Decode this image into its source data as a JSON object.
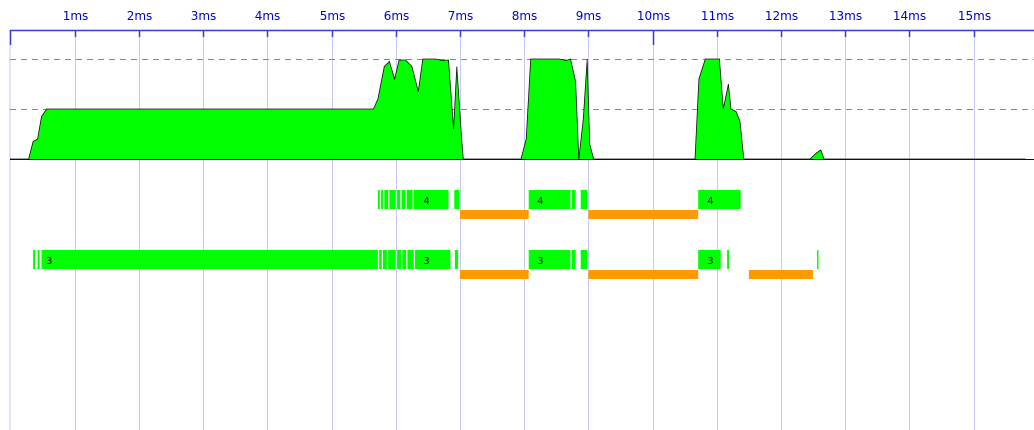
{
  "colors": {
    "axis": "#3a3ad6",
    "gridline": "#c8c8f0",
    "guide": "#888888",
    "activity_fill": "#00ff00",
    "activity_stroke": "#111111",
    "busy": "#00ff00",
    "waiting": "#ff9900",
    "label": "#0000cc"
  },
  "timeline": {
    "unit": "ms",
    "tick_values": [
      1,
      2,
      3,
      4,
      5,
      6,
      7,
      8,
      9,
      10,
      11,
      12,
      13,
      14,
      15
    ],
    "tick_labels": [
      "1ms",
      "2ms",
      "3ms",
      "4ms",
      "5ms",
      "6ms",
      "7ms",
      "8ms",
      "9ms",
      "10ms",
      "11ms",
      "12ms",
      "13ms",
      "14ms",
      "15ms"
    ],
    "range_ms": [
      -0.01,
      15.81
    ]
  },
  "chart_data": {
    "type": "area",
    "title": "",
    "xlabel": "",
    "ylabel": "",
    "xlim": [
      -0.01,
      15.81
    ],
    "ylim": [
      0,
      2
    ],
    "guides": [
      1,
      2
    ],
    "activity": [
      [
        -0.01,
        0
      ],
      [
        0.28,
        0
      ],
      [
        0.35,
        0.35
      ],
      [
        0.42,
        0.4
      ],
      [
        0.48,
        0.85
      ],
      [
        0.56,
        1.0
      ],
      [
        5.65,
        1.0
      ],
      [
        5.72,
        1.2
      ],
      [
        5.82,
        1.85
      ],
      [
        5.9,
        1.95
      ],
      [
        5.98,
        1.6
      ],
      [
        6.05,
        1.98
      ],
      [
        6.15,
        1.98
      ],
      [
        6.25,
        1.85
      ],
      [
        6.35,
        1.35
      ],
      [
        6.42,
        2.0
      ],
      [
        6.62,
        2.0
      ],
      [
        6.72,
        1.97
      ],
      [
        6.82,
        1.98
      ],
      [
        6.9,
        0.6
      ],
      [
        6.95,
        1.85
      ],
      [
        7.02,
        0.5
      ],
      [
        7.05,
        0
      ],
      [
        7.95,
        0
      ],
      [
        8.03,
        0.4
      ],
      [
        8.1,
        2.0
      ],
      [
        8.55,
        2.0
      ],
      [
        8.65,
        1.97
      ],
      [
        8.72,
        2.0
      ],
      [
        8.8,
        1.55
      ],
      [
        8.85,
        0
      ],
      [
        8.92,
        0.8
      ],
      [
        8.98,
        2.0
      ],
      [
        9.02,
        0.3
      ],
      [
        9.08,
        0
      ],
      [
        10.66,
        0
      ],
      [
        10.72,
        1.6
      ],
      [
        10.82,
        2.0
      ],
      [
        11.04,
        2.0
      ],
      [
        11.1,
        1.0
      ],
      [
        11.18,
        1.5
      ],
      [
        11.22,
        1.0
      ],
      [
        11.3,
        0.95
      ],
      [
        11.36,
        0.75
      ],
      [
        11.42,
        0
      ],
      [
        12.45,
        0
      ],
      [
        12.55,
        0.12
      ],
      [
        12.62,
        0.18
      ],
      [
        12.67,
        0
      ],
      [
        15.81,
        0
      ]
    ],
    "threads": [
      {
        "label_text": "4",
        "busy": [
          [
            5.72,
            5.75
          ],
          [
            5.77,
            5.8
          ],
          [
            5.82,
            5.88
          ],
          [
            5.9,
            6.0
          ],
          [
            6.02,
            6.07
          ],
          [
            6.09,
            6.15
          ],
          [
            6.17,
            6.26
          ],
          [
            6.28,
            6.82
          ],
          [
            6.91,
            6.99
          ],
          [
            8.07,
            8.72
          ],
          [
            8.74,
            8.8
          ],
          [
            8.88,
            8.98
          ],
          [
            10.71,
            11.37
          ]
        ],
        "waiting": [
          [
            7.0,
            8.07
          ],
          [
            9.0,
            10.71
          ]
        ],
        "label_at": [
          6.43,
          8.2,
          10.85
        ]
      },
      {
        "label_text": "3",
        "busy": [
          [
            0.35,
            0.38
          ],
          [
            0.42,
            0.45
          ],
          [
            0.48,
            5.72
          ],
          [
            5.74,
            5.78
          ],
          [
            5.8,
            5.86
          ],
          [
            5.88,
            6.0
          ],
          [
            6.02,
            6.08
          ],
          [
            6.1,
            6.16
          ],
          [
            6.18,
            6.28
          ],
          [
            6.3,
            6.85
          ],
          [
            6.92,
            6.97
          ],
          [
            8.07,
            8.72
          ],
          [
            8.74,
            8.8
          ],
          [
            8.88,
            8.98
          ],
          [
            10.71,
            11.06
          ],
          [
            11.16,
            11.19
          ],
          [
            12.56,
            12.58
          ]
        ],
        "waiting": [
          [
            7.0,
            8.07
          ],
          [
            9.0,
            10.71
          ],
          [
            11.5,
            12.5
          ]
        ],
        "label_at": [
          0.55,
          6.43,
          8.2,
          10.85
        ]
      }
    ]
  }
}
